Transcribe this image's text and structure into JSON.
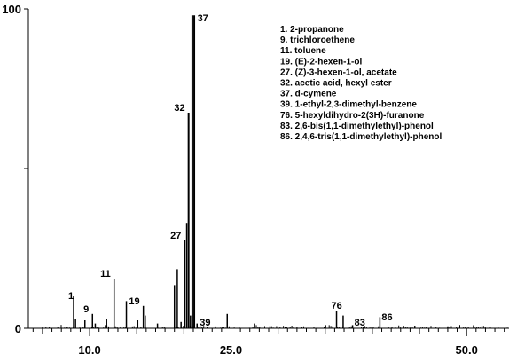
{
  "chart_data": {
    "type": "line",
    "title": "",
    "xlabel": "",
    "ylabel": "",
    "xlim": [
      3.5,
      54.5
    ],
    "ylim": [
      0,
      100
    ],
    "x_ticks": [
      10.0,
      25.0,
      50.0
    ],
    "x_tick_labels": [
      "10.0",
      "25.0",
      "50.0"
    ],
    "y_ticks": [
      0,
      50,
      100
    ],
    "y_tick_labels": [
      "0",
      "",
      "100"
    ],
    "minor_tick_step": 1,
    "peaks": [
      {
        "x": 8.3,
        "y": 10.0,
        "label": "1"
      },
      {
        "x": 8.5,
        "y": 3.0,
        "label": ""
      },
      {
        "x": 9.5,
        "y": 2.5,
        "label": ""
      },
      {
        "x": 10.3,
        "y": 4.5,
        "label": "9"
      },
      {
        "x": 10.6,
        "y": 1.5,
        "label": ""
      },
      {
        "x": 11.8,
        "y": 3.0,
        "label": ""
      },
      {
        "x": 12.6,
        "y": 15.5,
        "label": "11"
      },
      {
        "x": 13.9,
        "y": 8.5,
        "label": ""
      },
      {
        "x": 15.1,
        "y": 2.5,
        "label": ""
      },
      {
        "x": 15.7,
        "y": 7.0,
        "label": "19"
      },
      {
        "x": 15.9,
        "y": 4.0,
        "label": ""
      },
      {
        "x": 17.2,
        "y": 1.5,
        "label": ""
      },
      {
        "x": 19.0,
        "y": 13.5,
        "label": ""
      },
      {
        "x": 19.3,
        "y": 18.5,
        "label": ""
      },
      {
        "x": 19.7,
        "y": 2.0,
        "label": ""
      },
      {
        "x": 20.1,
        "y": 27.5,
        "label": "27"
      },
      {
        "x": 20.3,
        "y": 33.0,
        "label": ""
      },
      {
        "x": 20.5,
        "y": 67.5,
        "label": "32"
      },
      {
        "x": 20.7,
        "y": 4.0,
        "label": ""
      },
      {
        "x": 20.9,
        "y": 98.0,
        "label": "37"
      },
      {
        "x": 21.1,
        "y": 98.0,
        "label": ""
      },
      {
        "x": 21.4,
        "y": 1.5,
        "label": "39"
      },
      {
        "x": 24.6,
        "y": 4.5,
        "label": ""
      },
      {
        "x": 27.5,
        "y": 1.5,
        "label": ""
      },
      {
        "x": 36.2,
        "y": 5.5,
        "label": "76"
      },
      {
        "x": 36.9,
        "y": 4.0,
        "label": ""
      },
      {
        "x": 37.9,
        "y": 1.0,
        "label": "83"
      },
      {
        "x": 40.8,
        "y": 3.5,
        "label": "86"
      },
      {
        "x": 44.5,
        "y": 0.8,
        "label": ""
      },
      {
        "x": 48.0,
        "y": 0.6,
        "label": ""
      }
    ],
    "annotations": [
      "1. 2-propanone",
      "9. trichloroethene",
      "11. toluene",
      "19. (E)-2-hexen-1-ol",
      "27. (Z)-3-hexen-1-ol, acetate",
      "32. acetic acid, hexyl ester",
      "37. d-cymene",
      "39. 1-ethyl-2,3-dimethyl-benzene",
      "76. 5-hexyldihydro-2(3H)-furanone",
      "83. 2,6-bis(1,1-dimethylethyl)-phenol",
      "86. 2,4,6-tris(1,1-dimethylethyl)-phenol"
    ],
    "legend": "top-right",
    "grid": false
  }
}
